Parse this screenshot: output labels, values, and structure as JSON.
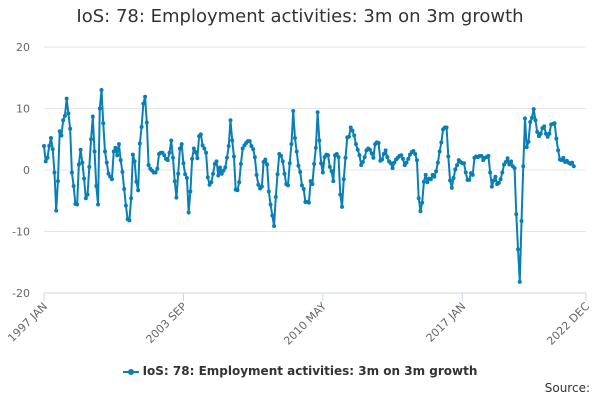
{
  "chart_data": {
    "type": "line",
    "title": "IoS: 78: Employment activities: 3m on 3m growth",
    "xlabel": "",
    "ylabel": "",
    "ylim": [
      -20,
      20
    ],
    "yticks": [
      -20,
      -10,
      0,
      10,
      20
    ],
    "x_tick_labels": [
      "1997 JAN",
      "2003 SEP",
      "2010 MAY",
      "2017 JAN",
      "2022 DEC"
    ],
    "x_tick_months": [
      0,
      80,
      160,
      240,
      311
    ],
    "grid": "horizontal",
    "legend_position": "bottom-center",
    "credits": "Source:",
    "series": [
      {
        "name": "IoS: 78: Employment activities: 3m on 3m growth",
        "color": "#0a7fb5",
        "month_start": 0,
        "values": [
          3.9,
          1.4,
          2,
          3.9,
          5.2,
          3.4,
          -0.4,
          -6.6,
          -1.8,
          6.3,
          5.6,
          8.1,
          8.8,
          11.6,
          9.2,
          6.7,
          -0.4,
          -2.6,
          -5.5,
          -5.6,
          0.9,
          3.3,
          1.2,
          -1.4,
          -4.6,
          -4,
          0.5,
          5,
          8.7,
          3,
          -2.6,
          -5.6,
          10,
          13,
          7.6,
          3,
          1.2,
          -0.6,
          -1.1,
          -1.5,
          3,
          3.6,
          2.4,
          4.2,
          1.6,
          -0.3,
          -3.1,
          -5.8,
          -8,
          -8.2,
          -4.6,
          2.5,
          1.4,
          -1.9,
          -3.3,
          4.3,
          7,
          10.8,
          11.9,
          7.7,
          0.8,
          0.2,
          -0.1,
          -0.4,
          -0.4,
          0.2,
          2.6,
          2.8,
          2.8,
          2.4,
          1.8,
          1.6,
          2.8,
          4.8,
          2,
          -1.8,
          -4.5,
          -0.6,
          3.5,
          4.2,
          1.1,
          -0.7,
          -1.3,
          -6.9,
          -3.5,
          1.8,
          3.5,
          2.9,
          1.9,
          5.5,
          5.8,
          4,
          3.5,
          2.8,
          -1.2,
          -2.4,
          -2,
          -0.6,
          1,
          1.4,
          -0.9,
          0.4,
          -0.6,
          -0.1,
          0.4,
          2,
          3.9,
          8.1,
          4.8,
          2.2,
          -3.2,
          -3.3,
          -2,
          1,
          3.5,
          4,
          4.4,
          4.7,
          4.7,
          3.9,
          3.4,
          2.1,
          -0.8,
          -2.4,
          -3,
          -2.7,
          1.3,
          1.7,
          0.9,
          -3.5,
          -5.6,
          -7.4,
          -9.1,
          -4.4,
          -0.7,
          2.6,
          2.3,
          1.4,
          -0.6,
          -2.3,
          -2.5,
          1.1,
          4.2,
          9.6,
          5.2,
          3,
          0.7,
          -0.3,
          -2.5,
          -3.1,
          -5.2,
          -5.2,
          -5.3,
          -1.8,
          -2.3,
          1,
          3.6,
          9.4,
          4.8,
          1.1,
          -0.4,
          2.1,
          2.5,
          2.4,
          0.5,
          -0.2,
          -1.8,
          2.4,
          2.6,
          2.1,
          -4,
          -6,
          -1.5,
          2,
          5.3,
          5.4,
          6.9,
          6.4,
          5.6,
          4.2,
          3.3,
          2.4,
          0.8,
          1.3,
          2.1,
          3.2,
          3.5,
          3.3,
          2.7,
          2,
          4.2,
          4.5,
          4.4,
          1.5,
          1.7,
          2.6,
          3.2,
          2.1,
          1.4,
          1.1,
          0.3,
          1.2,
          1.7,
          2,
          2.3,
          2.4,
          1.8,
          0.8,
          1.2,
          1.8,
          2.5,
          2.9,
          3.1,
          2.6,
          1.6,
          -4.6,
          -6.7,
          -5.3,
          -1.9,
          -0.8,
          -2,
          -1.4,
          -1.5,
          -0.8,
          -1.1,
          -0.2,
          1.2,
          3,
          4.5,
          6.6,
          6.9,
          6.9,
          2.2,
          -1.7,
          -2.9,
          -1.3,
          0.1,
          0.8,
          1.6,
          1.3,
          1.1,
          1.1,
          -0.4,
          -1.6,
          -1.6,
          -0.5,
          -0.8,
          2,
          2.2,
          2.1,
          2.3,
          2.3,
          1.6,
          2,
          2.1,
          2.3,
          -0.4,
          -2.7,
          -1.7,
          -1.1,
          -2.3,
          -2.1,
          -1.5,
          -0.4,
          0.9,
          1.3,
          1.9,
          0.9,
          1.4,
          0.6,
          0.3,
          -7.2,
          -12.9,
          -18.2,
          -8.3,
          0.6,
          8.4,
          3.7,
          4.6,
          7.8,
          8.5,
          9.9,
          8.1,
          6.2,
          5.5,
          5.9,
          6.8,
          7.1,
          5.9,
          5.4,
          5.9,
          7.4,
          7.5,
          7.6,
          5.1,
          3.2,
          1.7,
          1.6,
          2,
          1.3,
          1.5,
          1.2,
          1,
          1.2,
          0.6
        ]
      }
    ]
  }
}
